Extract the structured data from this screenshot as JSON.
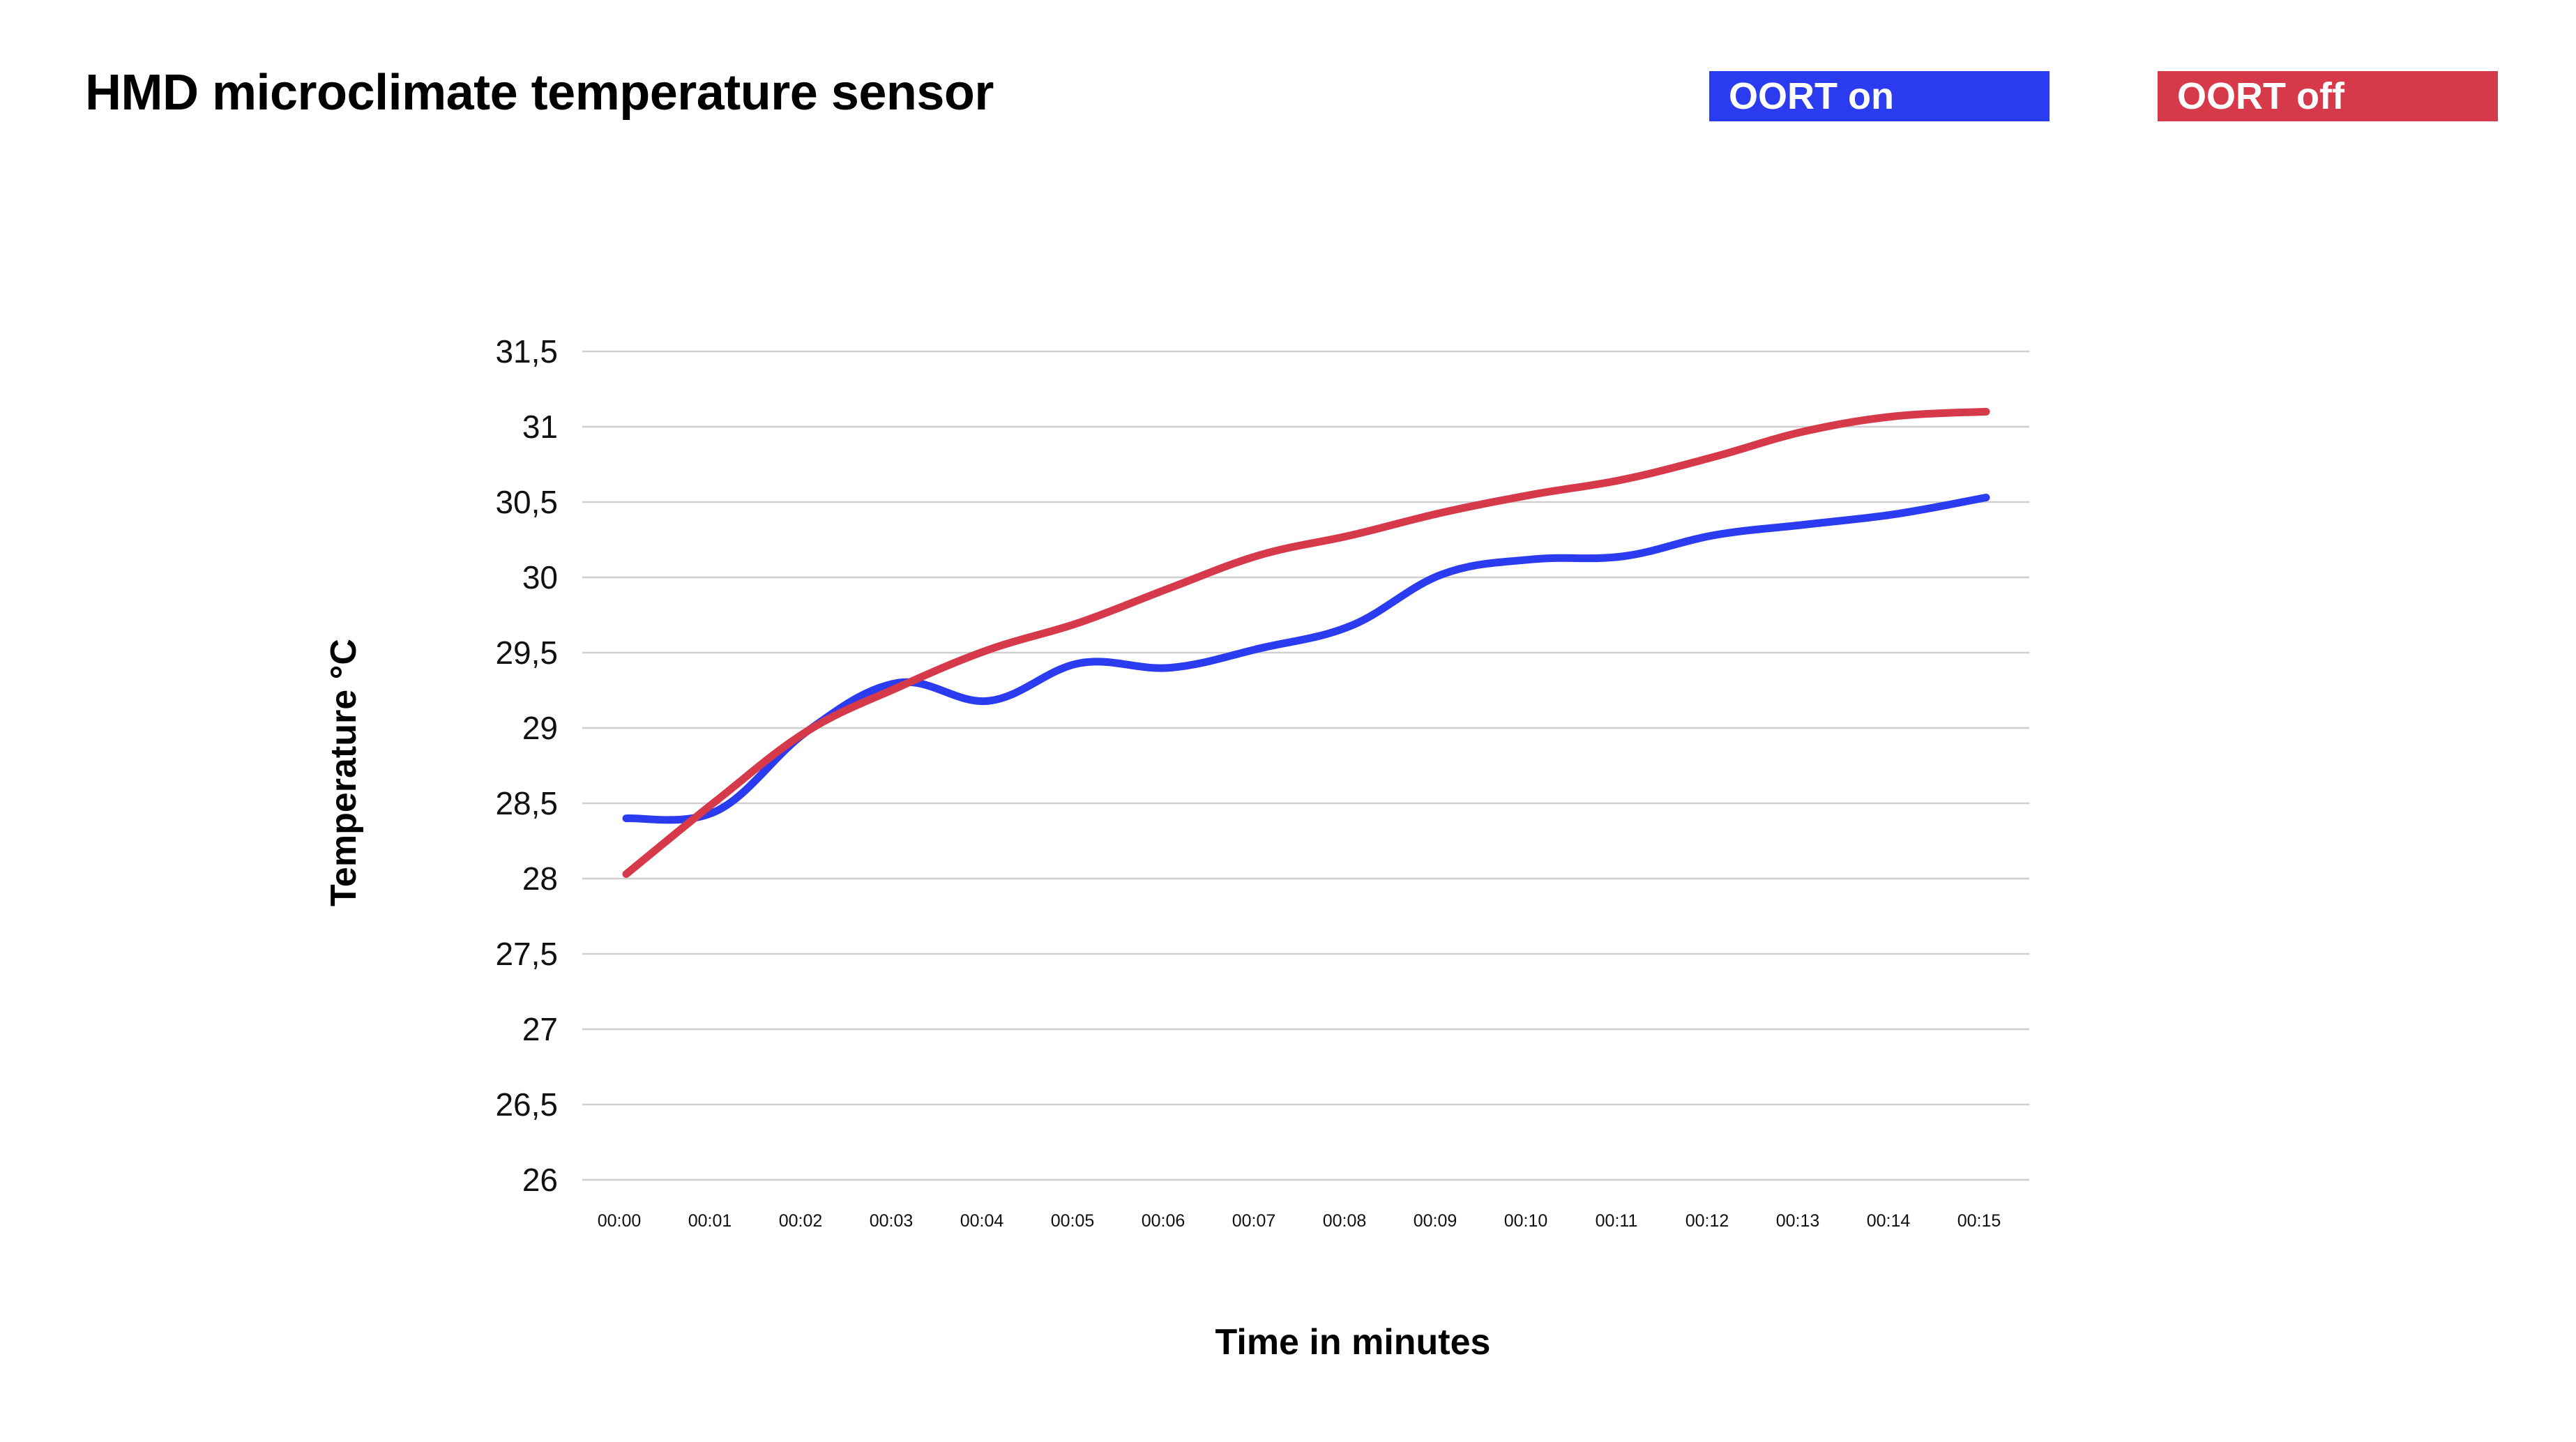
{
  "chart_data": {
    "type": "line",
    "title": "HMD microclimate temperature sensor",
    "xlabel": "Time in minutes",
    "ylabel": "Temperature °C",
    "categories": [
      "00:00",
      "00:01",
      "00:02",
      "00:03",
      "00:04",
      "00:05",
      "00:06",
      "00:07",
      "00:08",
      "00:09",
      "00:10",
      "00:11",
      "00:12",
      "00:13",
      "00:14",
      "00:15"
    ],
    "y_tick_labels": [
      "26",
      "26,5",
      "27",
      "27,5",
      "28",
      "28,5",
      "29",
      "29,5",
      "30",
      "30,5",
      "31",
      "31,5"
    ],
    "ylim": [
      26,
      31.5
    ],
    "grid": true,
    "legend_position": "top-right",
    "series": [
      {
        "name": "OORT on",
        "color": "#2B3BF0",
        "values": [
          28.4,
          28.45,
          28.98,
          29.3,
          29.18,
          29.43,
          29.4,
          29.53,
          29.68,
          30.02,
          30.12,
          30.14,
          30.28,
          30.35,
          30.42,
          30.53
        ]
      },
      {
        "name": "OORT off",
        "color": "#D63A4A",
        "values": [
          28.03,
          28.52,
          28.98,
          29.27,
          29.52,
          29.7,
          29.93,
          30.15,
          30.28,
          30.43,
          30.55,
          30.65,
          30.8,
          30.97,
          31.07,
          31.1
        ]
      }
    ]
  }
}
